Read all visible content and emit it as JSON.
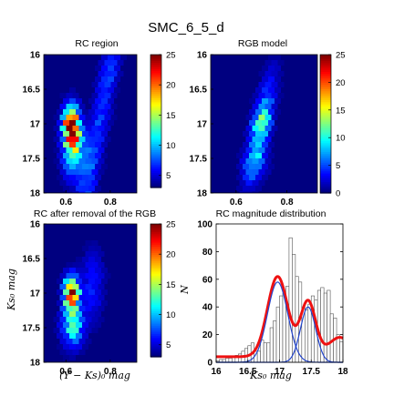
{
  "figure_title": "SMC_6_5_d",
  "chart_data": [
    {
      "type": "heatmap",
      "title": "RC region",
      "xlabel": "",
      "ylabel": "",
      "xlim": [
        0.5,
        0.92
      ],
      "ylim": [
        16,
        18
      ],
      "y_reversed": true,
      "x_ticks": [
        "0.6",
        "0.8"
      ],
      "y_ticks": [
        "16",
        "16.5",
        "17",
        "17.5",
        "18"
      ],
      "colorbar": {
        "range": [
          3,
          25
        ],
        "ticks": [
          "5",
          "10",
          "15",
          "20",
          "25"
        ]
      },
      "colormap": "jet"
    },
    {
      "type": "heatmap",
      "title": "RGB model",
      "xlabel": "",
      "ylabel": "",
      "xlim": [
        0.5,
        0.92
      ],
      "ylim": [
        16,
        18
      ],
      "y_reversed": true,
      "x_ticks": [
        "0.6",
        "0.8"
      ],
      "y_ticks": [
        "16",
        "16.5",
        "17",
        "17.5",
        "18"
      ],
      "colorbar": {
        "range": [
          0,
          25
        ],
        "ticks": [
          "0",
          "5",
          "10",
          "15",
          "20",
          "25"
        ]
      },
      "colormap": "jet"
    },
    {
      "type": "heatmap",
      "title": "RC after removal of the RGB",
      "xlabel": "(Y − Ks)₀ mag",
      "ylabel": "Ks₀ mag",
      "xlim": [
        0.5,
        0.92
      ],
      "ylim": [
        16,
        18
      ],
      "y_reversed": true,
      "x_ticks": [
        "0.6",
        "0.8"
      ],
      "y_ticks": [
        "16",
        "16.5",
        "17",
        "17.5",
        "18"
      ],
      "colorbar": {
        "range": [
          3,
          25
        ],
        "ticks": [
          "5",
          "10",
          "15",
          "20",
          "25"
        ]
      },
      "colormap": "jet"
    },
    {
      "type": "bar",
      "title": "RC magnitude distribution",
      "xlabel": "Ks₀ mag",
      "ylabel": "N",
      "xlim": [
        16,
        18
      ],
      "ylim": [
        0,
        100
      ],
      "x_ticks": [
        "16",
        "16.5",
        "17",
        "17.5",
        "18"
      ],
      "y_ticks": [
        "0",
        "20",
        "40",
        "60",
        "80",
        "100"
      ],
      "bins": {
        "start": 16.0,
        "width": 0.05,
        "values": [
          1,
          2,
          2,
          3,
          3,
          4,
          5,
          6,
          8,
          10,
          12,
          14,
          8,
          8,
          16,
          14,
          14,
          25,
          30,
          40,
          48,
          50,
          55,
          90,
          78,
          62,
          58,
          40,
          38,
          42,
          48,
          45,
          52,
          54,
          50,
          52,
          35,
          32,
          20,
          15
        ]
      },
      "series": [
        {
          "name": "",
          "color": "#ee1111",
          "line_width": "thick",
          "peaks": [
            {
              "mu": 16.97,
              "sigma": 0.16,
              "amp": 58
            },
            {
              "mu": 17.45,
              "sigma": 0.12,
              "amp": 40
            }
          ],
          "baseline": 4
        },
        {
          "name": "",
          "color": "#2244cc",
          "mu": 16.97,
          "sigma": 0.16,
          "amp": 58
        },
        {
          "name": "",
          "color": "#2244cc",
          "mu": 17.45,
          "sigma": 0.12,
          "amp": 40
        }
      ]
    }
  ]
}
